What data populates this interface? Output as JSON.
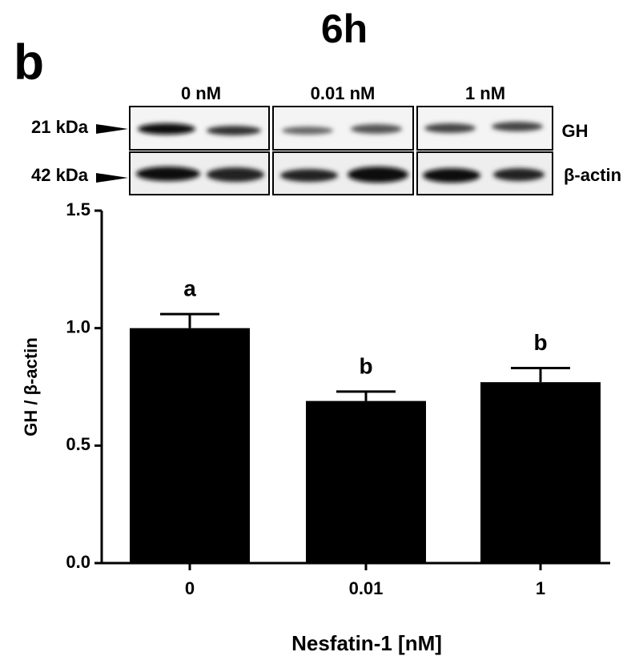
{
  "chart_data": {
    "type": "bar",
    "title": "6h",
    "panel_label": "b",
    "blot": {
      "lanes": [
        "0 nM",
        "0.01 nM",
        "1 nM"
      ],
      "sizes": [
        "21 kDa",
        "42 kDa"
      ],
      "proteins": [
        "GH",
        "β-actin"
      ]
    },
    "categories": [
      "0",
      "0.01",
      "1"
    ],
    "values": [
      1.0,
      0.69,
      0.77
    ],
    "errors": [
      0.06,
      0.04,
      0.06
    ],
    "annotations": [
      "a",
      "b",
      "b"
    ],
    "color": "#000000",
    "ylim": [
      0,
      1.5
    ],
    "yticks": [
      {
        "value": 0,
        "label": "0.0"
      },
      {
        "value": 0.5,
        "label": "0.5"
      },
      {
        "value": 1,
        "label": "1.0"
      },
      {
        "value": 1.5,
        "label": "1.5"
      }
    ],
    "xlabel": "Nesfatin-1 [nM]",
    "ylabel": "GH / β-actin"
  }
}
